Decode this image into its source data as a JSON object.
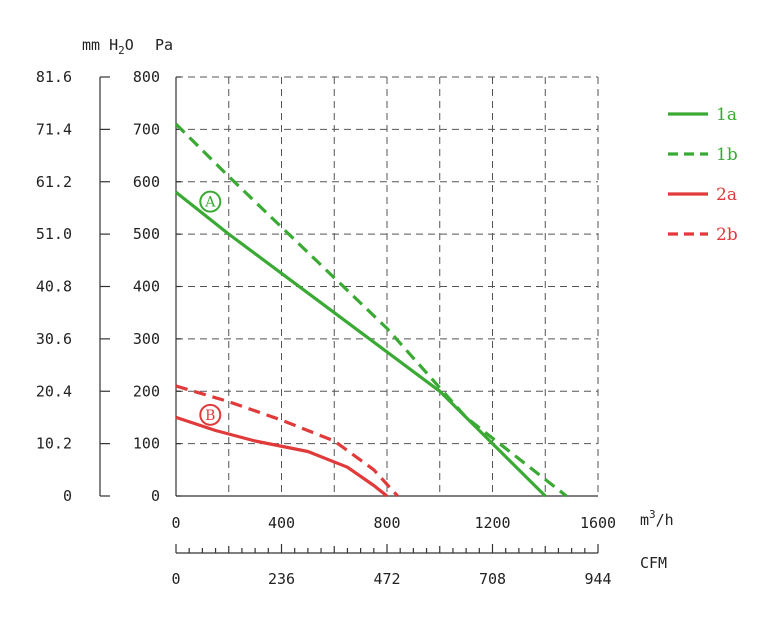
{
  "chart_data": {
    "type": "line",
    "units": {
      "left_outer": "mm H2O",
      "left_inner": "Pa",
      "bottom_primary": "m³/h",
      "bottom_secondary": "CFM"
    },
    "mmh2o_ticks": [
      "81.6",
      "71.4",
      "61.2",
      "51.0",
      "40.8",
      "30.6",
      "20.4",
      "10.2",
      "0"
    ],
    "pa_ticks": [
      "800",
      "700",
      "600",
      "500",
      "400",
      "300",
      "200",
      "100",
      "0"
    ],
    "m3h_ticks": [
      "0",
      "400",
      "800",
      "1200",
      "1600"
    ],
    "cfm_ticks": [
      "0",
      "236",
      "472",
      "708",
      "944"
    ],
    "xlim": [
      0,
      1600
    ],
    "ylim": [
      0,
      800
    ],
    "grid": true,
    "legend_position": "right",
    "series": [
      {
        "name": "1a",
        "color": "#3aaa35",
        "dash": false,
        "x": [
          0,
          200,
          600,
          1000,
          1400
        ],
        "y": [
          580,
          500,
          350,
          200,
          0
        ]
      },
      {
        "name": "1b",
        "color": "#3aaa35",
        "dash": true,
        "x": [
          0,
          200,
          800,
          1100,
          1480
        ],
        "y": [
          710,
          610,
          320,
          150,
          0
        ]
      },
      {
        "name": "2a",
        "color": "#e03a3a",
        "dash": false,
        "x": [
          0,
          150,
          300,
          500,
          650,
          750,
          800
        ],
        "y": [
          150,
          125,
          105,
          85,
          55,
          20,
          0
        ]
      },
      {
        "name": "2b",
        "color": "#e03a3a",
        "dash": true,
        "x": [
          0,
          200,
          400,
          600,
          750,
          840
        ],
        "y": [
          210,
          180,
          145,
          105,
          50,
          0
        ]
      }
    ],
    "markers": [
      {
        "label": "A",
        "color": "#3aaa35",
        "x": 130,
        "y": 562
      },
      {
        "label": "B",
        "color": "#e03a3a",
        "x": 130,
        "y": 155
      }
    ]
  }
}
